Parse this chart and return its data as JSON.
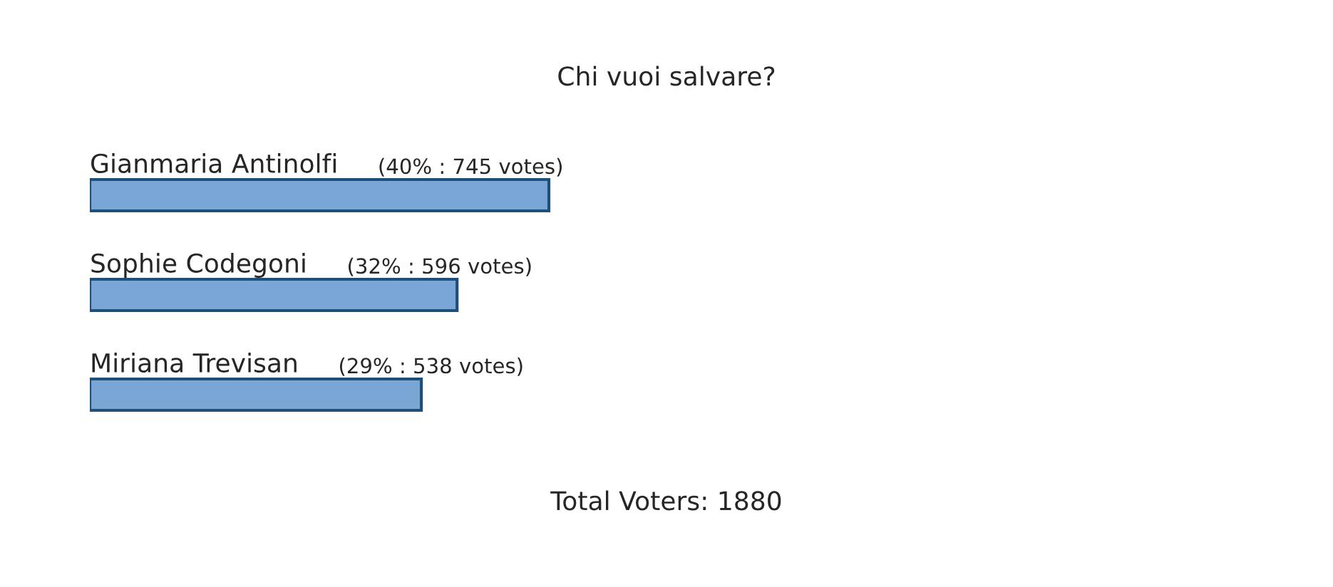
{
  "chart_data": {
    "type": "bar",
    "orientation": "horizontal",
    "title": "Chi vuoi salvare?",
    "categories": [
      "Gianmaria Antinolfi",
      "Sophie Codegoni",
      "Miriana Trevisan"
    ],
    "values": [
      745,
      596,
      538
    ],
    "value_labels": [
      "(40% : 745 votes)",
      "(32% : 596 votes)",
      "(29% : 538 votes)"
    ],
    "color": "#7aa6d6",
    "tick_labels": false,
    "annotations": [
      "Total Voters: 1880"
    ]
  }
}
